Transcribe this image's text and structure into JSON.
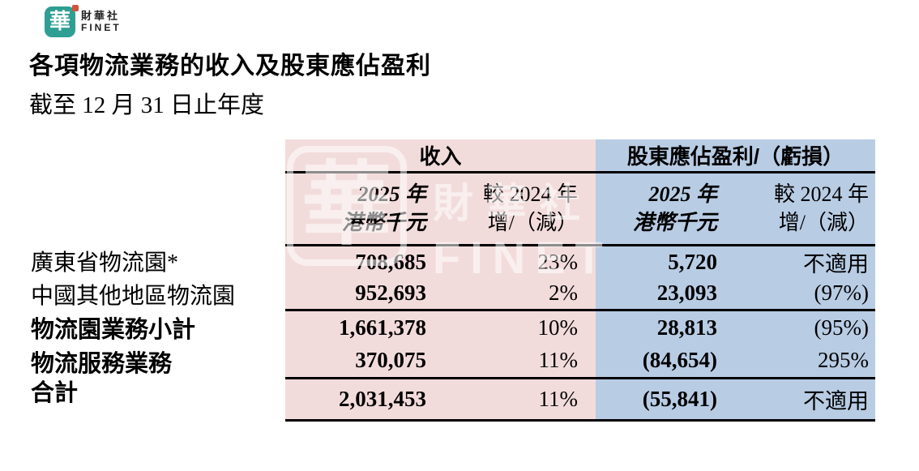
{
  "logo": {
    "glyph": "華",
    "brand_cn": "財華社",
    "brand_en": "FINET"
  },
  "page": {
    "title": "各項物流業務的收入及股東應佔盈利",
    "subtitle": "截至 12 月 31 日止年度"
  },
  "table": {
    "group_headers": [
      {
        "label": "收入"
      },
      {
        "label": "股東應佔盈利/（虧損）"
      }
    ],
    "col_headers": [
      {
        "line1": "2025 年",
        "line2": "港幣千元"
      },
      {
        "line1": "較 2024 年",
        "line2": "增/（減）"
      },
      {
        "line1": "2025 年",
        "line2": "港幣千元"
      },
      {
        "line1": "較 2024 年",
        "line2": "增/（減）"
      }
    ],
    "rows": [
      {
        "label": "廣東省物流園*",
        "revenue": "708,685",
        "revenue_change": "23%",
        "profit": "5,720",
        "profit_change": "不適用"
      },
      {
        "label": "中國其他地區物流園",
        "revenue": "952,693",
        "revenue_change": "2%",
        "profit": "23,093",
        "profit_change": "(97%)"
      },
      {
        "label": "物流園業務小計",
        "revenue": "1,661,378",
        "revenue_change": "10%",
        "profit": "28,813",
        "profit_change": "(95%)"
      },
      {
        "label": "物流服務業務",
        "revenue": "370,075",
        "revenue_change": "11%",
        "profit": "(84,654)",
        "profit_change": "295%"
      },
      {
        "label": "合計",
        "revenue": "2,031,453",
        "revenue_change": "11%",
        "profit": "(55,841)",
        "profit_change": "不適用"
      }
    ]
  },
  "watermark": {
    "glyph": "華",
    "brand_cn": "財華社",
    "brand_en": "FINET"
  },
  "colors": {
    "revenue_bg": "#f2dcdb",
    "profit_bg": "#b8cce4",
    "brand_teal": "#2f9e93",
    "seal_red": "#d0543c"
  }
}
